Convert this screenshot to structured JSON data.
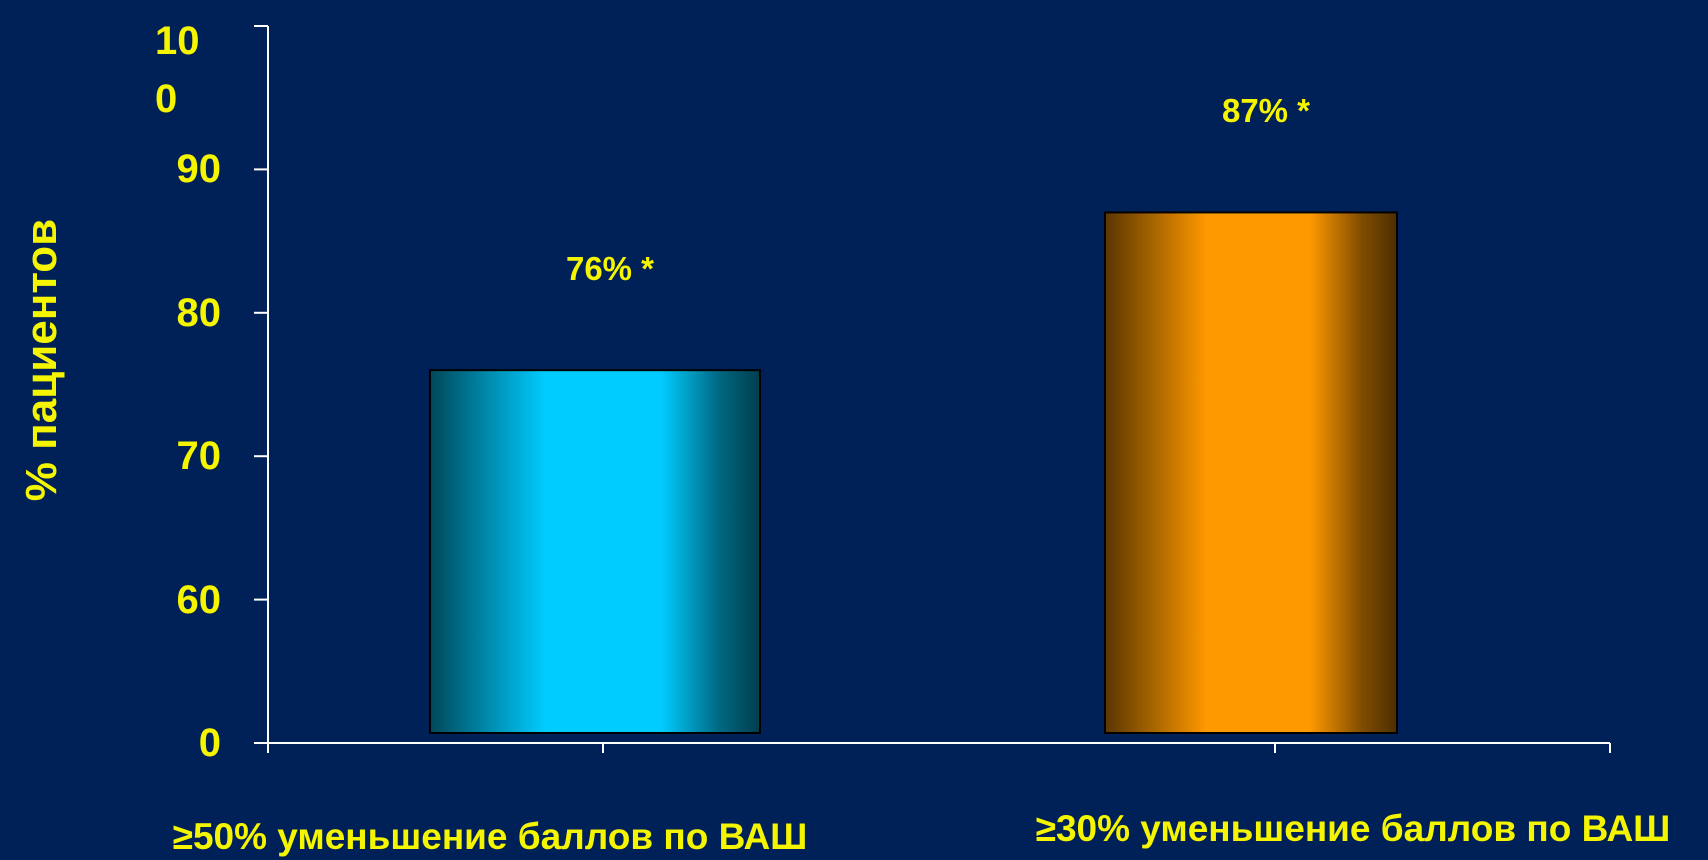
{
  "chart_data": {
    "type": "bar",
    "y_label": "% пациентов",
    "categories": [
      "≥50% уменьшение баллов по ВАШ",
      "≥30% уменьшение баллов по ВАШ"
    ],
    "values": [
      76,
      87
    ],
    "value_labels": [
      "76% *",
      "87% *"
    ],
    "colors": [
      "#00ccff",
      "#ff9900"
    ],
    "ylim": [
      0,
      100
    ],
    "yticks": [
      0,
      60,
      70,
      80,
      90,
      100
    ]
  }
}
